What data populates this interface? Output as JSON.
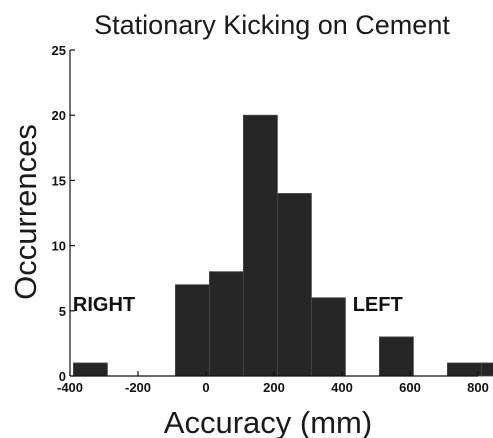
{
  "chart_data": {
    "type": "bar",
    "title": "Stationary Kicking on Cement",
    "xlabel": "Accuracy (mm)",
    "ylabel": "Occurrences",
    "xlim": [
      -400,
      800
    ],
    "ylim": [
      0,
      25
    ],
    "xticks": [
      -400,
      -200,
      0,
      200,
      400,
      600,
      800
    ],
    "yticks": [
      0,
      5,
      10,
      15,
      20,
      25
    ],
    "bin_width": 100,
    "bins": [
      {
        "x0": -390,
        "x1": -290,
        "value": 1
      },
      {
        "x0": -90,
        "x1": 10,
        "value": 7
      },
      {
        "x0": 10,
        "x1": 110,
        "value": 8
      },
      {
        "x0": 110,
        "x1": 210,
        "value": 20
      },
      {
        "x0": 210,
        "x1": 310,
        "value": 14
      },
      {
        "x0": 310,
        "x1": 410,
        "value": 6
      },
      {
        "x0": 510,
        "x1": 610,
        "value": 3
      },
      {
        "x0": 710,
        "x1": 810,
        "value": 1
      },
      {
        "x0": 810,
        "x1": 910,
        "value": 1
      }
    ],
    "annotations": [
      {
        "text": "RIGHT",
        "x": -300,
        "y": 5
      },
      {
        "text": "LEFT",
        "x": 505,
        "y": 5
      }
    ],
    "grid": false,
    "legend": "none",
    "bar_color": "#262626"
  }
}
